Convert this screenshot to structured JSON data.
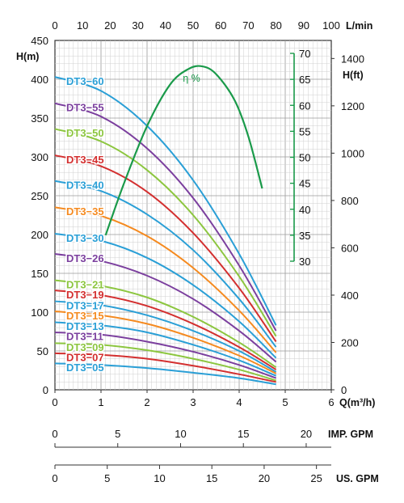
{
  "chart_data": {
    "type": "line",
    "x_axis": {
      "label": "Q(m³/h)",
      "range": [
        0,
        6
      ],
      "ticks": [
        "0",
        "1",
        "2",
        "3",
        "4",
        "5",
        "6"
      ]
    },
    "x2_axis": {
      "label": "L/min",
      "range": [
        0,
        100
      ],
      "ticks": [
        "0",
        "10",
        "20",
        "30",
        "40",
        "50",
        "60",
        "70",
        "80",
        "90",
        "100"
      ]
    },
    "y_axis": {
      "label": "H(m)",
      "range": [
        0,
        450
      ],
      "ticks": [
        "0",
        "50",
        "100",
        "150",
        "200",
        "250",
        "300",
        "350",
        "400",
        "450"
      ]
    },
    "y2_axis": {
      "label": "H(ft)",
      "ticks": [
        "0",
        "200",
        "400",
        "600",
        "800",
        "1000",
        "1200",
        "1400"
      ]
    },
    "eff_axis": {
      "label": "η %",
      "range": [
        30,
        70
      ],
      "ticks": [
        "30",
        "35",
        "40",
        "45",
        "50",
        "55",
        "60",
        "65",
        "70"
      ],
      "color": "#1a9a4a"
    },
    "imp_gpm": {
      "label": "IMP. GPM",
      "ticks": [
        "0",
        "5",
        "10",
        "15",
        "20"
      ]
    },
    "us_gpm": {
      "label": "US. GPM",
      "ticks": [
        "0",
        "5",
        "10",
        "15",
        "20",
        "25"
      ]
    },
    "grid": true,
    "series": [
      {
        "name": "DT3-60",
        "color": "#2a9fd6",
        "x": [
          0,
          1,
          2,
          3,
          4,
          4.8
        ],
        "y": [
          403,
          385,
          340,
          270,
          175,
          83
        ]
      },
      {
        "name": "DT3-55",
        "color": "#7b3f9e",
        "x": [
          0,
          1,
          2,
          3,
          4,
          4.8
        ],
        "y": [
          369,
          352,
          311,
          247,
          160,
          76
        ]
      },
      {
        "name": "DT3-50",
        "color": "#8cc63f",
        "x": [
          0,
          1,
          2,
          3,
          4,
          4.8
        ],
        "y": [
          336,
          320,
          283,
          225,
          146,
          69
        ]
      },
      {
        "name": "DT3-45",
        "color": "#d32f2f",
        "x": [
          0,
          1,
          2,
          3,
          4,
          4.8
        ],
        "y": [
          302,
          288,
          255,
          202,
          131,
          62
        ]
      },
      {
        "name": "DT3-40",
        "color": "#2a9fd6",
        "x": [
          0,
          1,
          2,
          3,
          4,
          4.8
        ],
        "y": [
          269,
          256,
          226,
          180,
          117,
          55
        ]
      },
      {
        "name": "DT3-35",
        "color": "#f58a1f",
        "x": [
          0,
          1,
          2,
          3,
          4,
          4.8
        ],
        "y": [
          235,
          224,
          198,
          157,
          102,
          48
        ]
      },
      {
        "name": "DT3-30",
        "color": "#2a9fd6",
        "x": [
          0,
          1,
          2,
          3,
          4,
          4.8
        ],
        "y": [
          201,
          192,
          170,
          135,
          88,
          41
        ]
      },
      {
        "name": "DT3-26",
        "color": "#7b3f9e",
        "x": [
          0,
          1,
          2,
          3,
          4,
          4.8
        ],
        "y": [
          175,
          166,
          147,
          117,
          76,
          36
        ]
      },
      {
        "name": "DT3-21",
        "color": "#8cc63f",
        "x": [
          0,
          1,
          2,
          3,
          4,
          4.8
        ],
        "y": [
          141,
          134,
          119,
          94,
          61,
          29
        ]
      },
      {
        "name": "DT3-19",
        "color": "#d32f2f",
        "x": [
          0,
          1,
          2,
          3,
          4,
          4.8
        ],
        "y": [
          128,
          122,
          108,
          85,
          55,
          26
        ]
      },
      {
        "name": "DT3-17",
        "color": "#2a9fd6",
        "x": [
          0,
          1,
          2,
          3,
          4,
          4.8
        ],
        "y": [
          114,
          109,
          96,
          76,
          50,
          23
        ]
      },
      {
        "name": "DT3-15",
        "color": "#f58a1f",
        "x": [
          0,
          1,
          2,
          3,
          4,
          4.8
        ],
        "y": [
          101,
          96,
          85,
          67,
          44,
          21
        ]
      },
      {
        "name": "DT3-13",
        "color": "#2a9fd6",
        "x": [
          0,
          1,
          2,
          3,
          4,
          4.8
        ],
        "y": [
          87,
          83,
          74,
          58,
          38,
          18
        ]
      },
      {
        "name": "DT3-11",
        "color": "#7b3f9e",
        "x": [
          0,
          1,
          2,
          3,
          4,
          4.8
        ],
        "y": [
          74,
          71,
          62,
          49,
          32,
          15
        ]
      },
      {
        "name": "DT3-09",
        "color": "#8cc63f",
        "x": [
          0,
          1,
          2,
          3,
          4,
          4.8
        ],
        "y": [
          60,
          58,
          51,
          40,
          26,
          12
        ]
      },
      {
        "name": "DT3-07",
        "color": "#d32f2f",
        "x": [
          0,
          1,
          2,
          3,
          4,
          4.8
        ],
        "y": [
          47,
          45,
          40,
          31,
          20,
          10
        ]
      },
      {
        "name": "DT3-05",
        "color": "#2a9fd6",
        "x": [
          0,
          1,
          2,
          3,
          4,
          4.8
        ],
        "y": [
          34,
          32,
          28,
          22,
          15,
          7
        ]
      }
    ],
    "efficiency": {
      "name": "η %",
      "color": "#1a9a4a",
      "x": [
        1.1,
        1.5,
        2.0,
        2.5,
        2.9,
        3.2,
        3.5,
        3.9,
        4.2,
        4.5
      ],
      "y": [
        35,
        45,
        56,
        64,
        67,
        67.5,
        66,
        61,
        54,
        44
      ]
    }
  }
}
